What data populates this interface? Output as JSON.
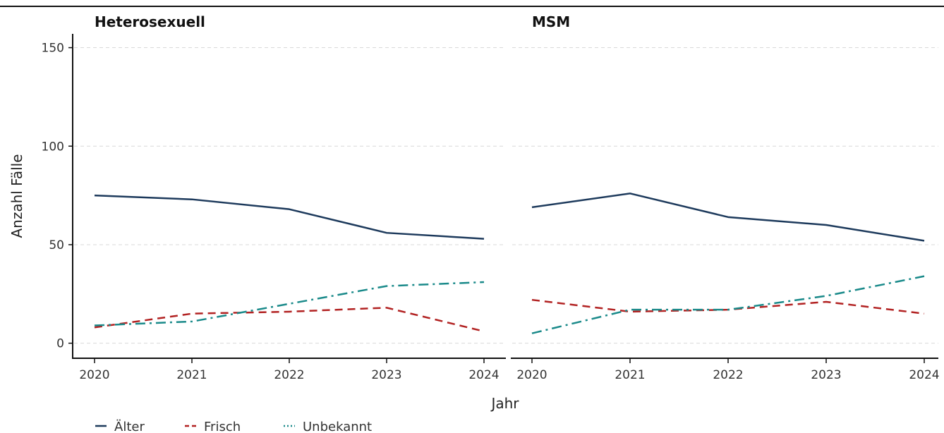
{
  "chart_data": {
    "type": "line",
    "xlabel": "Jahr",
    "ylabel": "Anzahl Fälle",
    "ylim": [
      -8,
      157
    ],
    "yticks": [
      0,
      50,
      100,
      150
    ],
    "grid": "horizontal dashed",
    "legend_position": "bottom-left",
    "series_styles": [
      {
        "name": "Älter",
        "color": "#1d3a5c",
        "dash": "solid"
      },
      {
        "name": "Frisch",
        "color": "#b22222",
        "dash": "dashed"
      },
      {
        "name": "Unbekannt",
        "color": "#1a8a8a",
        "dash": "dashdot"
      }
    ],
    "panels": [
      {
        "title": "Heterosexuell",
        "x": [
          "2020",
          "2021",
          "2022",
          "2023",
          "2024"
        ],
        "series": [
          {
            "name": "Älter",
            "values": [
              75,
              73,
              68,
              56,
              53
            ]
          },
          {
            "name": "Frisch",
            "values": [
              8,
              15,
              16,
              18,
              6
            ]
          },
          {
            "name": "Unbekannt",
            "values": [
              9,
              11,
              20,
              29,
              31
            ]
          }
        ]
      },
      {
        "title": "MSM",
        "x": [
          "2020",
          "2021",
          "2022",
          "2023",
          "2024"
        ],
        "series": [
          {
            "name": "Älter",
            "values": [
              69,
              76,
              64,
              60,
              52
            ]
          },
          {
            "name": "Frisch",
            "values": [
              22,
              16,
              17,
              21,
              15
            ]
          },
          {
            "name": "Unbekannt",
            "values": [
              5,
              17,
              17,
              24,
              34
            ]
          }
        ]
      }
    ]
  }
}
